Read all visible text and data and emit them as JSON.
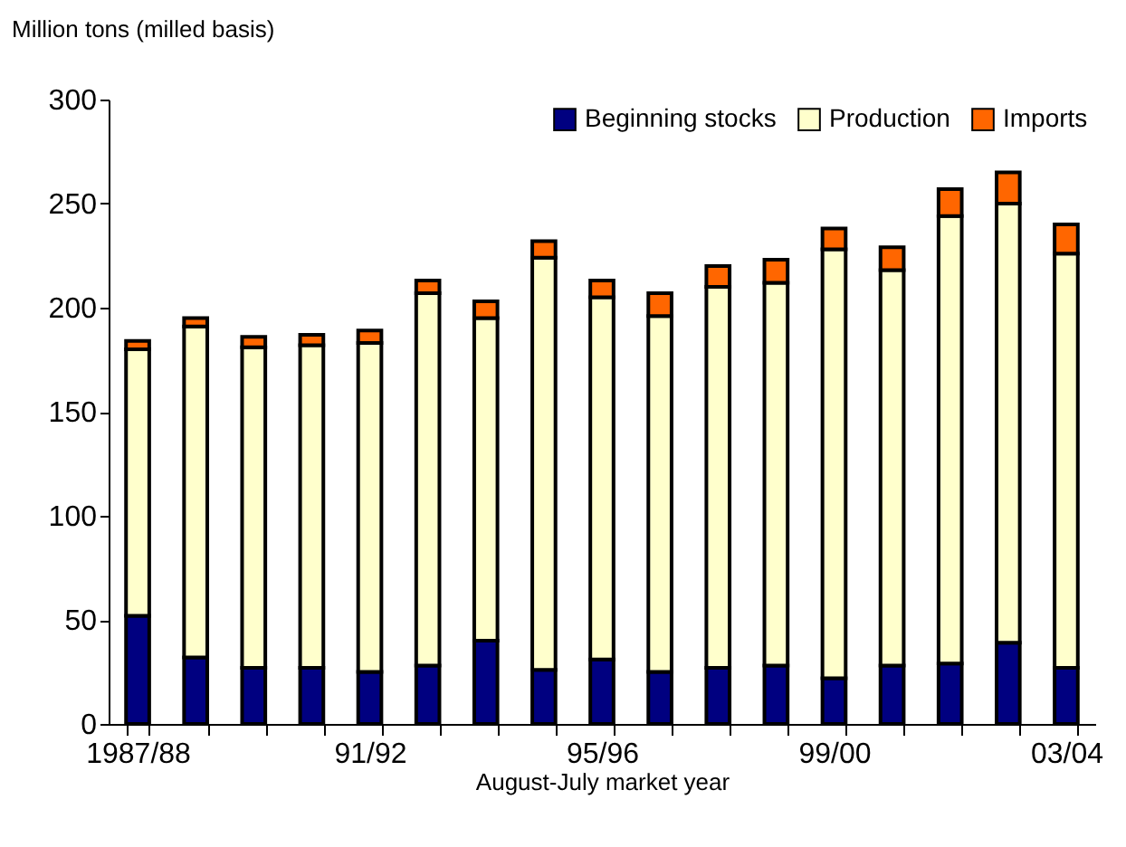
{
  "chart_data": {
    "type": "bar",
    "stacked": true,
    "ylabel": "Million tons (milled basis)",
    "xlabel": "August-July market year",
    "categories": [
      "1987/88",
      null,
      null,
      null,
      "91/92",
      null,
      null,
      null,
      "95/96",
      null,
      null,
      null,
      "99/00",
      null,
      null,
      null,
      "03/04"
    ],
    "series": [
      {
        "name": "Beginning stocks",
        "color": "#000080",
        "values": [
          52,
          32,
          27,
          27,
          25,
          28,
          40,
          26,
          31,
          25,
          27,
          28,
          22,
          28,
          29,
          39,
          27
        ]
      },
      {
        "name": "Production",
        "color": "#ffffcc",
        "values": [
          128,
          159,
          154,
          155,
          158,
          179,
          155,
          198,
          174,
          171,
          183,
          184,
          206,
          190,
          215,
          211,
          199
        ]
      },
      {
        "name": "Imports",
        "color": "#ff6600",
        "values": [
          4,
          4,
          5,
          5,
          6,
          6,
          8,
          8,
          8,
          11,
          10,
          11,
          10,
          11,
          13,
          15,
          14
        ]
      }
    ],
    "ylim": [
      0,
      300
    ],
    "yticks": [
      0,
      50,
      100,
      150,
      200,
      250,
      300
    ],
    "grid": false,
    "legend": "top right"
  }
}
